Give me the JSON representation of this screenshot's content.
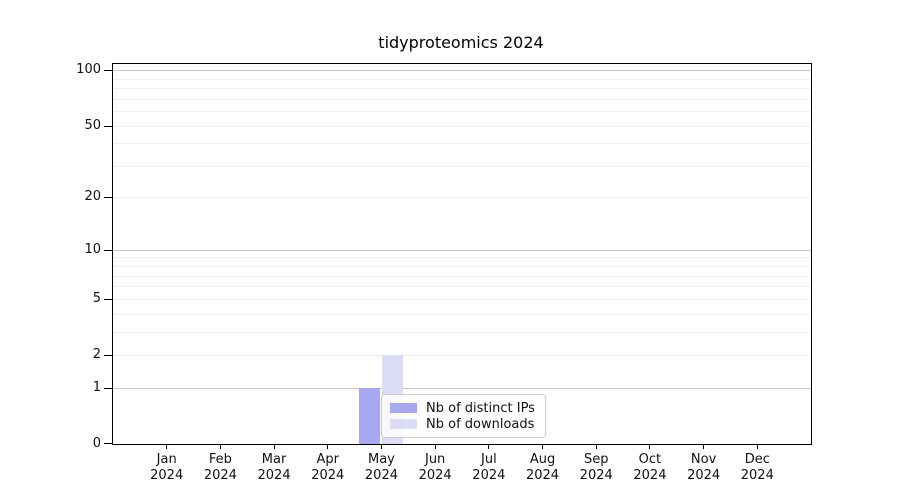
{
  "chart_data": {
    "type": "bar",
    "title": "tidyproteomics 2024",
    "categories": [
      "Jan",
      "Feb",
      "Mar",
      "Apr",
      "May",
      "Jun",
      "Jul",
      "Aug",
      "Sep",
      "Oct",
      "Nov",
      "Dec"
    ],
    "x_year": "2024",
    "series": [
      {
        "name": "Nb of distinct IPs",
        "color": "#a8a8f0",
        "values": [
          0,
          0,
          0,
          0,
          1,
          0,
          0,
          0,
          0,
          0,
          0,
          0
        ]
      },
      {
        "name": "Nb of downloads",
        "color": "#dcdcf6",
        "values": [
          0,
          0,
          0,
          0,
          2,
          0,
          0,
          0,
          0,
          0,
          0,
          0
        ]
      }
    ],
    "y_scale": "log1p",
    "ylim": [
      0,
      108
    ],
    "y_major_ticks": [
      0,
      1,
      2,
      5,
      10,
      20,
      50,
      100
    ],
    "y_gridlines_dark": [
      1,
      10,
      100
    ],
    "y_gridlines_light": [
      2,
      3,
      4,
      5,
      6,
      7,
      8,
      9,
      20,
      30,
      40,
      50,
      60,
      70,
      80,
      90
    ],
    "grid_colors": {
      "dark": "#c7c7c7",
      "light": "#ededed"
    },
    "grid": true,
    "legend_position": "lower center"
  }
}
